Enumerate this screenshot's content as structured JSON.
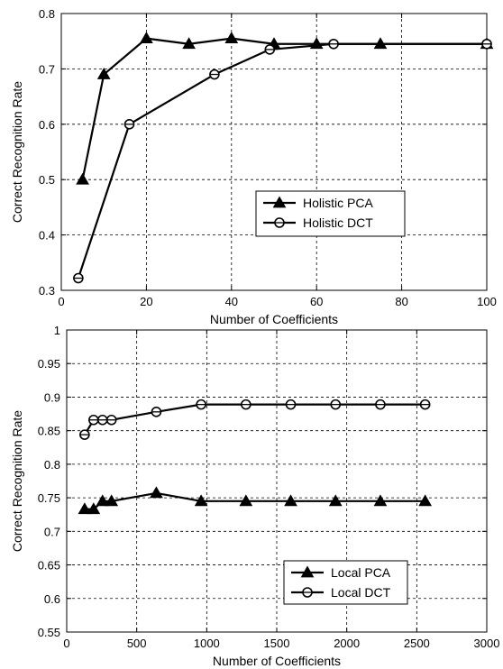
{
  "chart_data": [
    {
      "type": "line",
      "xlabel": "Number of Coefficients",
      "ylabel": "Correct Recognition Rate",
      "xlim": [
        0,
        100
      ],
      "ylim": [
        0.3,
        0.8
      ],
      "xticks": [
        0,
        20,
        40,
        60,
        80,
        100
      ],
      "yticks": [
        0.3,
        0.4,
        0.5,
        0.6,
        0.7,
        0.8
      ],
      "xtick_labels": [
        "0",
        "20",
        "40",
        "60",
        "80",
        "100"
      ],
      "ytick_labels": [
        "0.3",
        "0.4",
        "0.5",
        "0.6",
        "0.7",
        "0.8"
      ],
      "grid": true,
      "legend_position": "center-right",
      "series": [
        {
          "name": "Holistic PCA",
          "marker": "triangle",
          "x": [
            5,
            10,
            20,
            30,
            40,
            50,
            60,
            75,
            100
          ],
          "y": [
            0.5,
            0.69,
            0.755,
            0.745,
            0.755,
            0.745,
            0.745,
            0.745,
            0.745
          ]
        },
        {
          "name": "Holistic DCT",
          "marker": "circle",
          "x": [
            4,
            16,
            36,
            49,
            64,
            100
          ],
          "y": [
            0.322,
            0.6,
            0.69,
            0.735,
            0.745,
            0.745
          ]
        }
      ]
    },
    {
      "type": "line",
      "xlabel": "Number of Coefficients",
      "ylabel": "Correct Recognition Rate",
      "xlim": [
        0,
        3000
      ],
      "ylim": [
        0.55,
        1.0
      ],
      "xticks": [
        0,
        500,
        1000,
        1500,
        2000,
        2500,
        3000
      ],
      "yticks": [
        0.55,
        0.6,
        0.65,
        0.7,
        0.75,
        0.8,
        0.85,
        0.9,
        0.95,
        1.0
      ],
      "xtick_labels": [
        "0",
        "500",
        "1000",
        "1500",
        "2000",
        "2500",
        "3000"
      ],
      "ytick_labels": [
        "0.55",
        "0.6",
        "0.65",
        "0.7",
        "0.75",
        "0.8",
        "0.85",
        "0.9",
        "0.95",
        "1"
      ],
      "grid": true,
      "legend_position": "bottom-right",
      "series": [
        {
          "name": "Local PCA",
          "marker": "triangle",
          "x": [
            128,
            192,
            256,
            320,
            640,
            960,
            1280,
            1600,
            1920,
            2240,
            2560
          ],
          "y": [
            0.733,
            0.733,
            0.745,
            0.745,
            0.757,
            0.745,
            0.745,
            0.745,
            0.745,
            0.745,
            0.745
          ]
        },
        {
          "name": "Local DCT",
          "marker": "circle",
          "x": [
            128,
            192,
            256,
            320,
            640,
            960,
            1280,
            1600,
            1920,
            2240,
            2560
          ],
          "y": [
            0.844,
            0.866,
            0.866,
            0.866,
            0.878,
            0.889,
            0.889,
            0.889,
            0.889,
            0.889,
            0.889
          ]
        }
      ]
    }
  ]
}
